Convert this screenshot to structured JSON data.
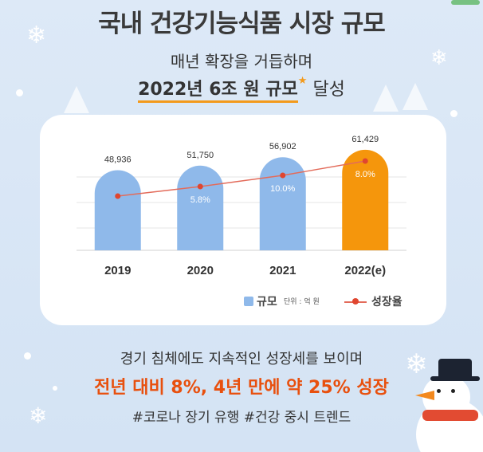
{
  "header": {
    "title": "국내 건강기능식품 시장 규모",
    "subtitle": "매년 확장을 거듭하며",
    "highlight": "2022년 6조 원 규모",
    "highlight_suffix": "달성",
    "star_icon": "star-icon"
  },
  "legend": {
    "bar_label": "규모",
    "unit": "단위 : 억 원",
    "line_label": "성장율"
  },
  "colors": {
    "bar": "#8fb9ea",
    "bar_highlight": "#f5960c",
    "line": "#e36b5a",
    "point": "#e0462f",
    "accent": "#e8500e"
  },
  "chart_data": {
    "type": "bar",
    "categories": [
      "2019",
      "2020",
      "2021",
      "2022(e)"
    ],
    "values": [
      48936,
      51750,
      56902,
      61429
    ],
    "value_labels": [
      "48,936",
      "51,750",
      "56,902",
      "61,429"
    ],
    "growth_rate": [
      null,
      5.8,
      10.0,
      8.0
    ],
    "growth_labels": [
      "",
      "5.8%",
      "10.0%",
      "8.0%"
    ],
    "highlight_index": 3,
    "legend_placement": "bottom-right",
    "grid": true
  },
  "footer": {
    "line1": "경기 침체에도 지속적인 성장세를 보이며",
    "line2": "전년 대비 8%, 4년 만에 약 25% 성장",
    "line3": "#코로나 장기 유행 #건강 중시 트렌드"
  }
}
